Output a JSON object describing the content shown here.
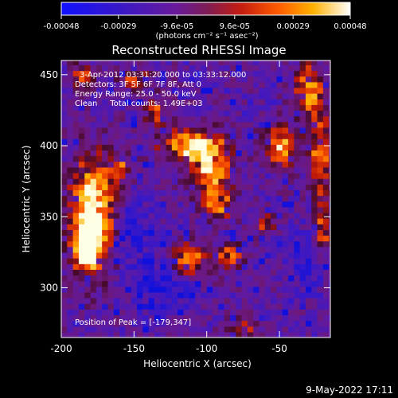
{
  "colorbar": {
    "ticks": [
      "-0.00048",
      "-0.00029",
      "-9.6e-05",
      "9.6e-05",
      "0.00029",
      "0.00048"
    ],
    "tick_values": [
      -0.00048,
      -0.00029,
      -9.6e-05,
      9.6e-05,
      0.00029,
      0.00048
    ],
    "units_label": "(photons cm⁻² s⁻¹ asec⁻²)",
    "range": [
      -0.00048,
      0.00048
    ]
  },
  "annotations": {
    "time_range": "3-Apr-2012 03:31:20.000 to 03:33:12.000",
    "detectors": "Detectors: 3F 5F 6F 7F 8F, Att 0",
    "energy_range": "Energy Range: 25.0 - 50.0 keV",
    "method_counts": "Clean     Total counts: 1.49E+03",
    "peak_position": "Position of Peak = [-179,347]"
  },
  "footer": {
    "date": "9-May-2022 17:11"
  },
  "chart_data": {
    "type": "heatmap",
    "title": "Reconstructed RHESSI Image",
    "xlabel": "Heliocentric X (arcsec)",
    "ylabel": "Heliocentric Y (arcsec)",
    "xlim": [
      -200,
      -15
    ],
    "ylim": [
      265,
      460
    ],
    "x_ticks": [
      "-200",
      "-150",
      "-100",
      "-50"
    ],
    "x_tick_values": [
      -200,
      -150,
      -100,
      -50
    ],
    "y_ticks": [
      "300",
      "350",
      "400",
      "450"
    ],
    "y_tick_values": [
      300,
      350,
      400,
      450
    ],
    "colormap": "blue-purple-red-yellow-white",
    "peak": [
      -179,
      347
    ],
    "bright_regions": [
      {
        "x": -178,
        "y": 352,
        "rx": 15,
        "ry": 40,
        "level": 1.0
      },
      {
        "x": -183,
        "y": 328,
        "rx": 8,
        "ry": 14,
        "level": 0.85
      },
      {
        "x": -110,
        "y": 400,
        "rx": 22,
        "ry": 12,
        "level": 0.75
      },
      {
        "x": -98,
        "y": 384,
        "rx": 14,
        "ry": 18,
        "level": 0.7
      },
      {
        "x": -92,
        "y": 360,
        "rx": 10,
        "ry": 12,
        "level": 0.6
      },
      {
        "x": -112,
        "y": 320,
        "rx": 12,
        "ry": 12,
        "level": 0.65
      },
      {
        "x": -85,
        "y": 322,
        "rx": 10,
        "ry": 10,
        "level": 0.6
      },
      {
        "x": -48,
        "y": 400,
        "rx": 12,
        "ry": 14,
        "level": 0.7
      },
      {
        "x": -30,
        "y": 440,
        "rx": 10,
        "ry": 18,
        "level": 0.65
      },
      {
        "x": -22,
        "y": 395,
        "rx": 8,
        "ry": 30,
        "level": 0.6
      },
      {
        "x": -20,
        "y": 340,
        "rx": 7,
        "ry": 20,
        "level": 0.55
      },
      {
        "x": -75,
        "y": 270,
        "rx": 10,
        "ry": 7,
        "level": 0.55
      },
      {
        "x": -185,
        "y": 450,
        "rx": 8,
        "ry": 10,
        "level": 0.55
      },
      {
        "x": -150,
        "y": 448,
        "rx": 10,
        "ry": 8,
        "level": 0.45
      },
      {
        "x": -135,
        "y": 425,
        "rx": 8,
        "ry": 10,
        "level": 0.5
      },
      {
        "x": -60,
        "y": 345,
        "rx": 8,
        "ry": 8,
        "level": 0.4
      },
      {
        "x": -158,
        "y": 385,
        "rx": 7,
        "ry": 8,
        "level": 0.45
      }
    ],
    "dim_regions": [
      {
        "x": -30,
        "y": 320,
        "rx": 15,
        "ry": 20,
        "level": 0.1
      },
      {
        "x": -130,
        "y": 300,
        "rx": 20,
        "ry": 18,
        "level": 0.15
      },
      {
        "x": -150,
        "y": 340,
        "rx": 14,
        "ry": 22,
        "level": 0.15
      }
    ]
  }
}
